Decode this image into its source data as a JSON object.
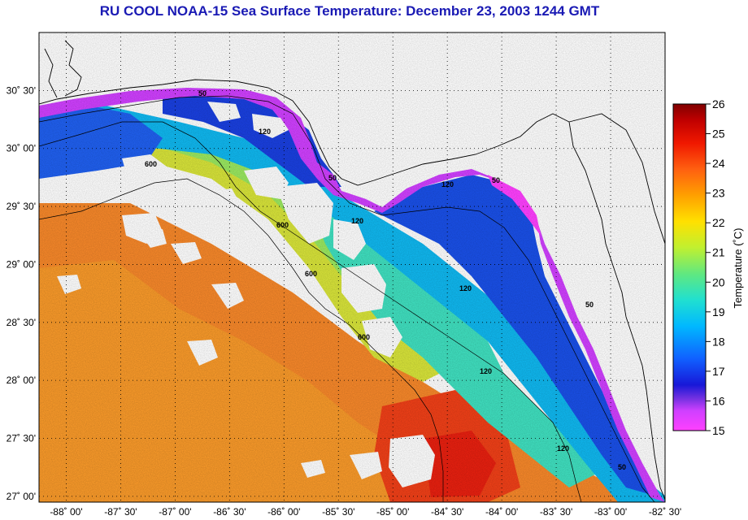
{
  "title": "RU COOL  NOAA-15  Sea Surface Temperature:  December 23, 2003 1244 GMT",
  "map": {
    "lat_labels": [
      "30˚ 30'",
      "30˚ 00'",
      "29˚ 30'",
      "29˚ 00'",
      "28˚ 30'",
      "28˚ 00'",
      "27˚ 30'",
      "27˚ 00'"
    ],
    "lon_labels": [
      "-88˚ 00'",
      "-87˚ 30'",
      "-87˚ 00'",
      "-86˚ 30'",
      "-86˚ 00'",
      "-85˚ 30'",
      "-85˚ 00'",
      "-84˚ 30'",
      "-84˚ 00'",
      "-83˚ 30'",
      "-83˚ 00'",
      "-82˚ 30'"
    ],
    "lat_values": [
      30.5,
      30.0,
      29.5,
      29.0,
      28.5,
      28.0,
      27.5,
      27.0
    ],
    "lon_values": [
      -88.0,
      -87.5,
      -87.0,
      -86.5,
      -86.0,
      -85.5,
      -85.0,
      -84.5,
      -84.0,
      -83.5,
      -83.0,
      -82.5
    ],
    "lat_range": [
      26.95,
      31.0
    ],
    "lon_range": [
      -88.25,
      -82.5
    ],
    "grid": true,
    "bathymetry_labels": [
      "50",
      "120",
      "600",
      "50",
      "120",
      "600",
      "120",
      "50",
      "120",
      "600",
      "120",
      "50",
      "600",
      "50",
      "120"
    ]
  },
  "colorbar": {
    "label": "Temperature (˚C)",
    "ticks": [
      "26",
      "25",
      "24",
      "23",
      "22",
      "21",
      "20",
      "19",
      "18",
      "17",
      "16",
      "15"
    ],
    "range": [
      15,
      26
    ],
    "colors": [
      "#ff40ff",
      "#a030ff",
      "#2020e0",
      "#1060ff",
      "#00b8ff",
      "#20e0d0",
      "#60e880",
      "#c0f030",
      "#ffe000",
      "#ffa000",
      "#ff6010",
      "#f01800",
      "#c00000",
      "#800000"
    ]
  }
}
